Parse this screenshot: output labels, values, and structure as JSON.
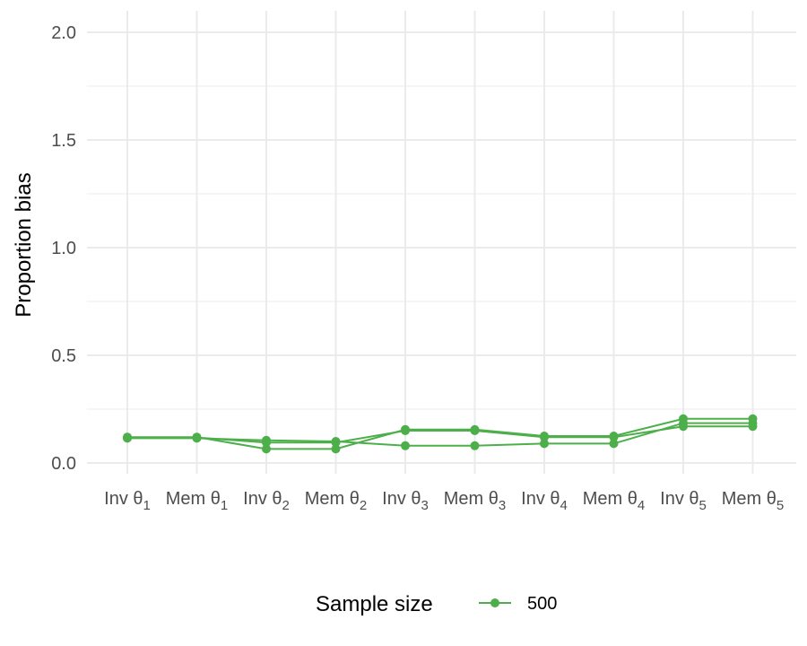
{
  "chart_data": {
    "type": "line",
    "categories": [
      {
        "base": "Inv θ",
        "sub": "1"
      },
      {
        "base": "Mem θ",
        "sub": "1"
      },
      {
        "base": "Inv θ",
        "sub": "2"
      },
      {
        "base": "Mem θ",
        "sub": "2"
      },
      {
        "base": "Inv θ",
        "sub": "3"
      },
      {
        "base": "Mem θ",
        "sub": "3"
      },
      {
        "base": "Inv θ",
        "sub": "4"
      },
      {
        "base": "Mem θ",
        "sub": "4"
      },
      {
        "base": "Inv θ",
        "sub": "5"
      },
      {
        "base": "Mem θ",
        "sub": "5"
      }
    ],
    "series": [
      {
        "values": [
          0.12,
          0.12,
          0.065,
          0.065,
          0.155,
          0.155,
          0.125,
          0.125,
          0.205,
          0.205
        ]
      },
      {
        "values": [
          0.115,
          0.115,
          0.105,
          0.1,
          0.08,
          0.08,
          0.09,
          0.09,
          0.185,
          0.185
        ]
      },
      {
        "values": [
          0.118,
          0.118,
          0.095,
          0.095,
          0.15,
          0.15,
          0.12,
          0.12,
          0.17,
          0.17
        ]
      }
    ],
    "color": "#4daf4a",
    "ylabel": "Proportion bias",
    "xlabel": "",
    "ylim": [
      -0.05,
      2.1
    ],
    "yticks": [
      "0.0",
      "0.5",
      "1.0",
      "1.5",
      "2.0"
    ],
    "grid": true,
    "legend": {
      "title": "Sample size",
      "label": "500",
      "position": "bottom"
    }
  }
}
